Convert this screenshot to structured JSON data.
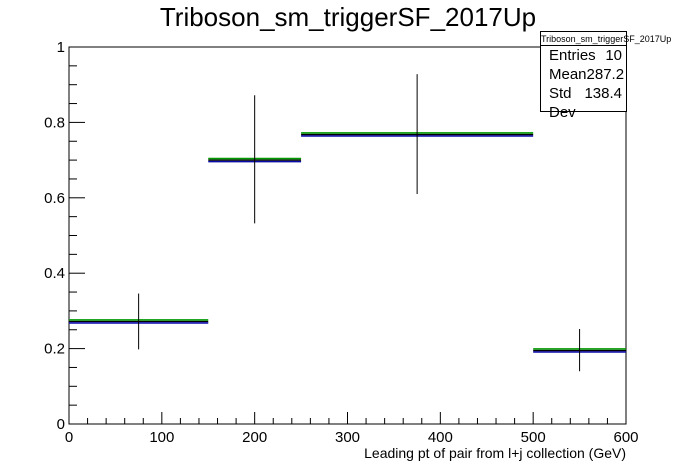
{
  "chart_data": {
    "type": "histogram",
    "title": "Triboson_sm_triggerSF_2017Up",
    "xlabel": "Leading pt of pair from l+j collection (GeV)",
    "ylabel": "",
    "xlim": [
      0,
      600
    ],
    "ylim": [
      0,
      1.0
    ],
    "x_ticks": [
      "0",
      "100",
      "200",
      "300",
      "400",
      "500",
      "600"
    ],
    "y_ticks": [
      "0",
      "0.2",
      "0.4",
      "0.6",
      "0.8",
      "1"
    ],
    "bins": [
      {
        "x_low": 0,
        "x_high": 150,
        "value": 0.272,
        "err_low": 0.198,
        "err_high": 0.346
      },
      {
        "x_low": 150,
        "x_high": 250,
        "value": 0.7,
        "err_low": 0.532,
        "err_high": 0.872
      },
      {
        "x_low": 250,
        "x_high": 500,
        "value": 0.768,
        "err_low": 0.61,
        "err_high": 0.928
      },
      {
        "x_low": 500,
        "x_high": 600,
        "value": 0.195,
        "err_low": 0.14,
        "err_high": 0.252
      }
    ],
    "series_colors": [
      "#0a0aa8",
      "#009a00",
      "#000000"
    ],
    "stats_box": {
      "header": "Triboson_sm_triggerSF_2017Up",
      "rows": [
        {
          "label": "Entries",
          "value": "10"
        },
        {
          "label": "Mean",
          "value": "287.2"
        },
        {
          "label": "Std Dev",
          "value": "138.4"
        }
      ]
    },
    "grid": false
  }
}
